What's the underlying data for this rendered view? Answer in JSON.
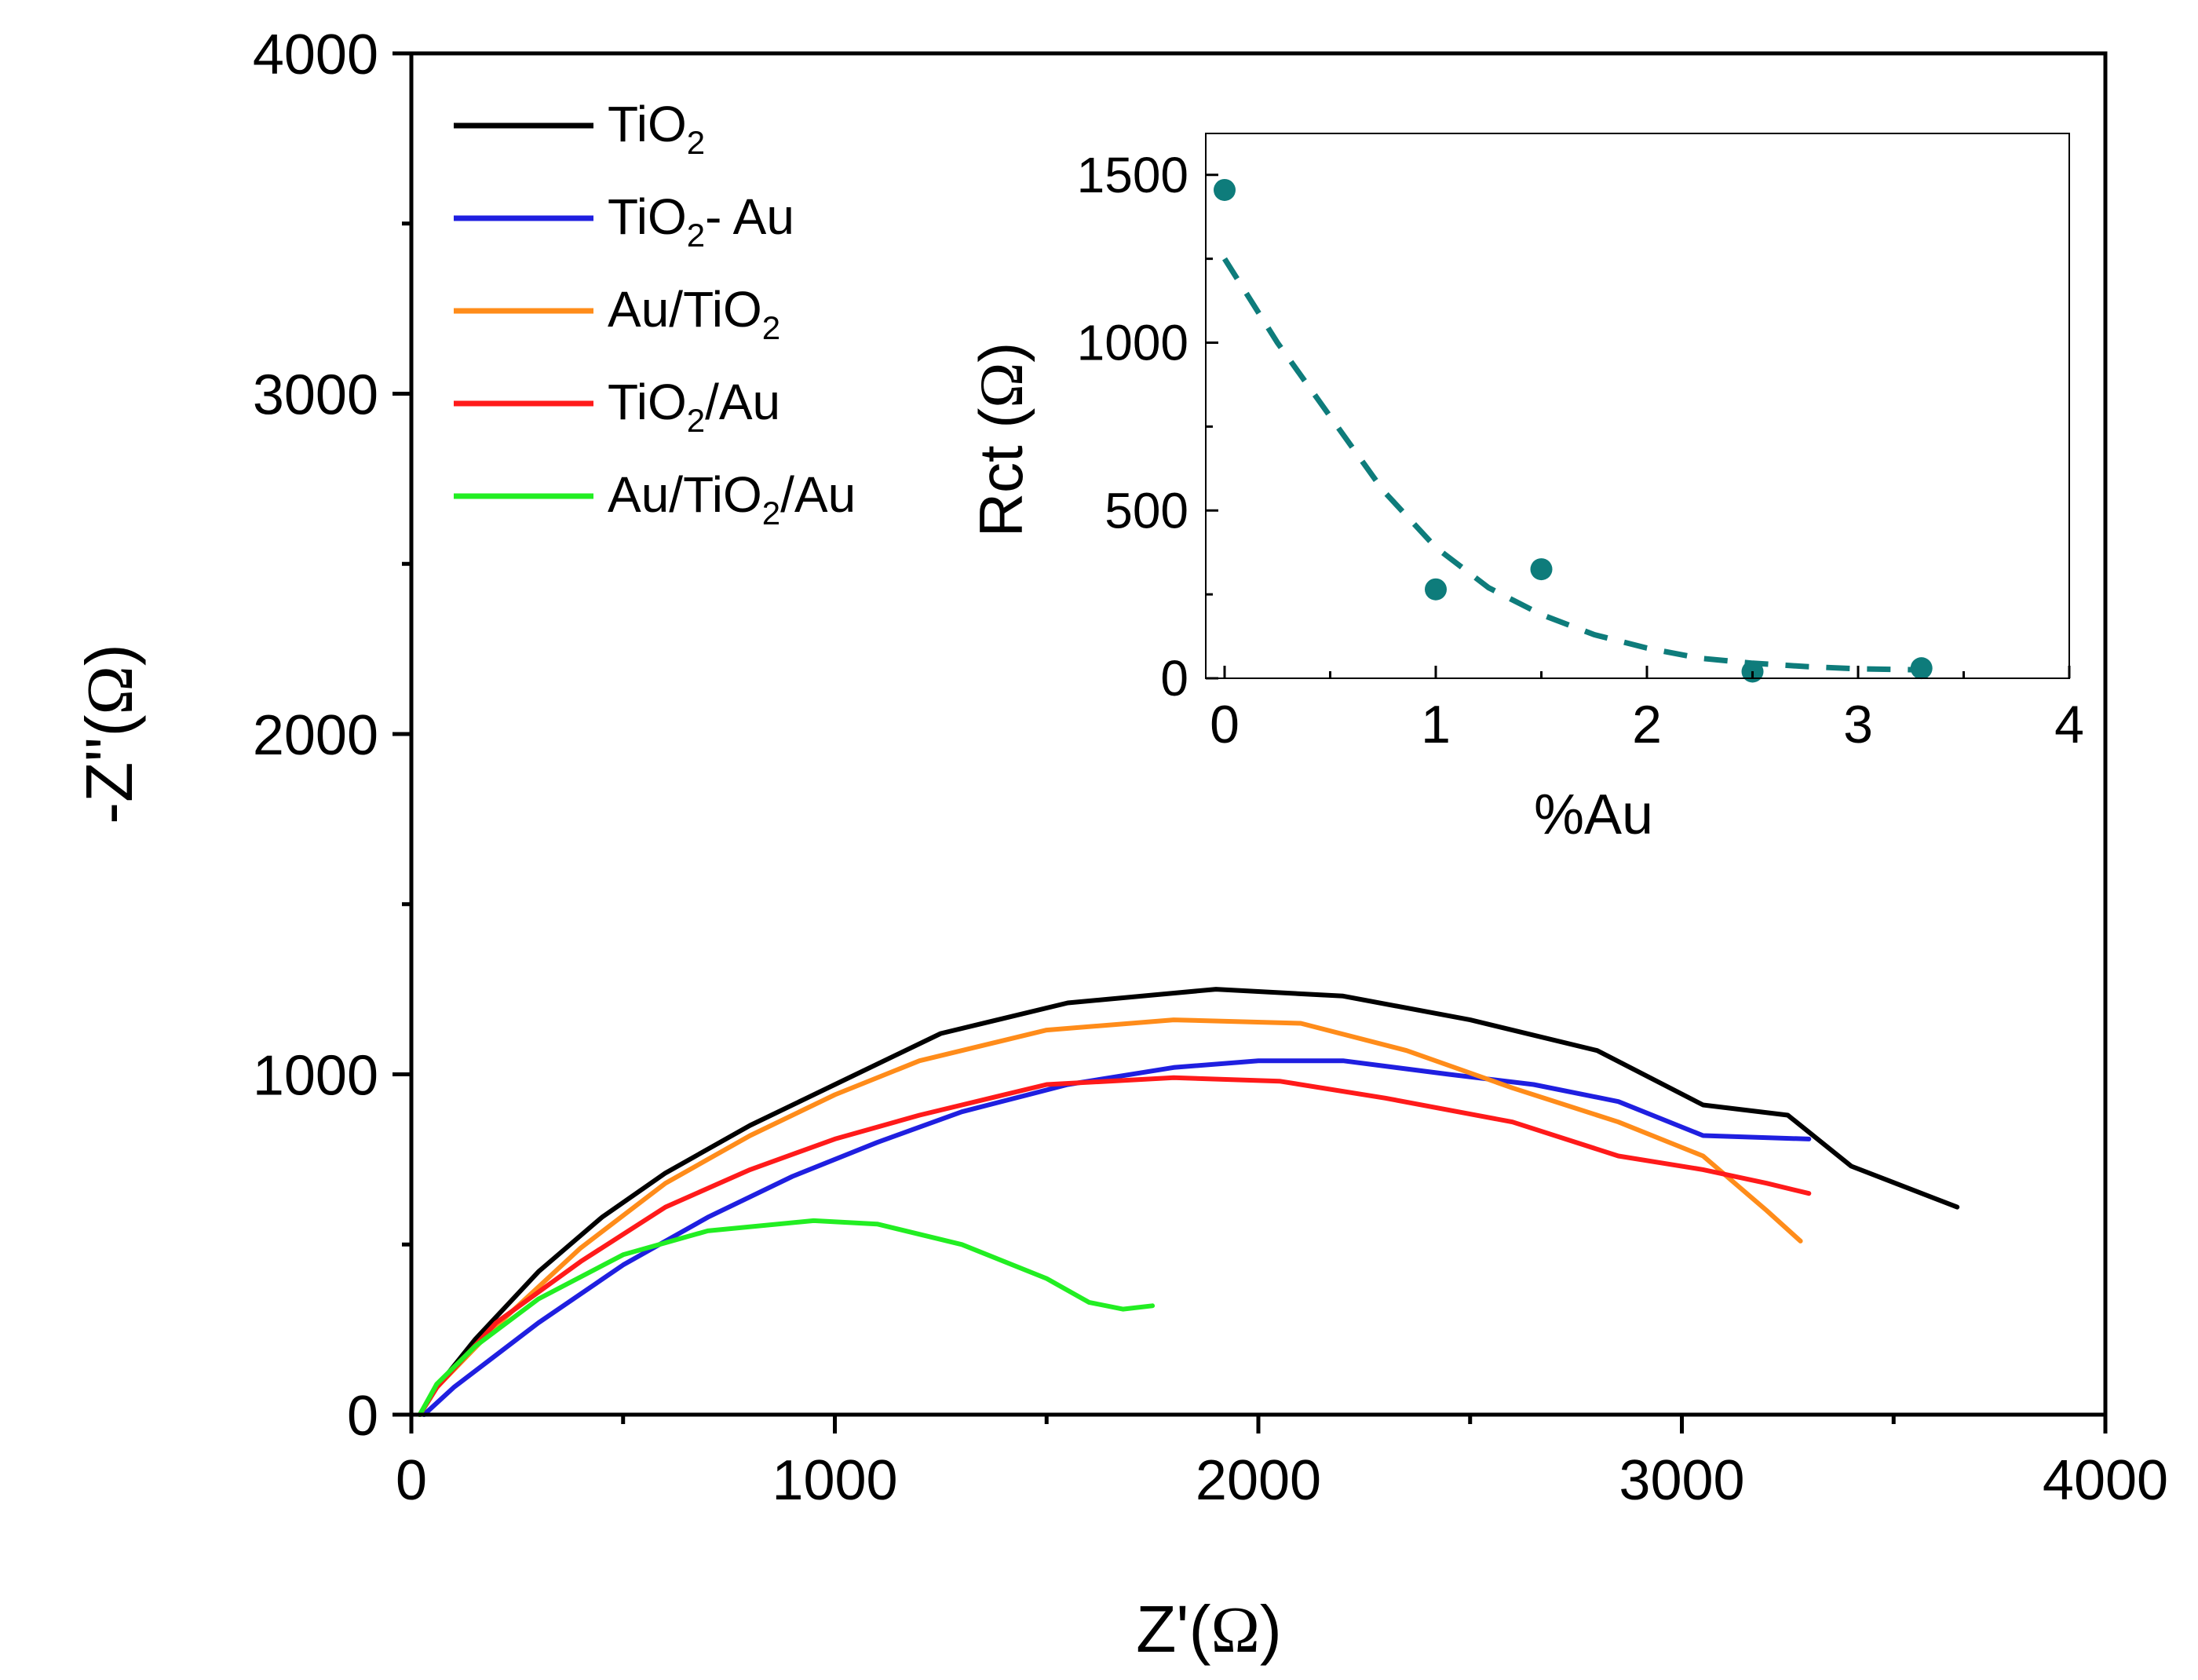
{
  "chart_data": [
    {
      "type": "line",
      "title": "",
      "xlabel_prefix": "Z'(",
      "xlabel_symbol": "Ω",
      "xlabel_suffix": ")",
      "ylabel_prefix": "-Z''(",
      "ylabel_symbol": "Ω",
      "ylabel_suffix": ")",
      "xlim": [
        0,
        4000
      ],
      "ylim": [
        0,
        4000
      ],
      "xticks": [
        0,
        1000,
        2000,
        3000,
        4000
      ],
      "xtick_labels": [
        "0",
        "1000",
        "2000",
        "3000",
        "4000"
      ],
      "yticks": [
        0,
        1000,
        2000,
        3000,
        4000
      ],
      "ytick_labels": [
        "0",
        "1000",
        "2000",
        "3000",
        "4000"
      ],
      "legend_position": "top-left",
      "series": [
        {
          "name": "TiO2",
          "label_main": "TiO",
          "label_sub": "2",
          "label_rest": "",
          "color": "#000000",
          "points": [
            [
              20,
              0
            ],
            [
              60,
              80
            ],
            [
              150,
              220
            ],
            [
              300,
              420
            ],
            [
              450,
              580
            ],
            [
              600,
              710
            ],
            [
              800,
              850
            ],
            [
              1000,
              970
            ],
            [
              1250,
              1120
            ],
            [
              1550,
              1210
            ],
            [
              1900,
              1250
            ],
            [
              2200,
              1230
            ],
            [
              2500,
              1160
            ],
            [
              2800,
              1070
            ],
            [
              3050,
              910
            ],
            [
              3250,
              880
            ],
            [
              3400,
              730
            ],
            [
              3650,
              610
            ]
          ]
        },
        {
          "name": "TiO2- Au",
          "label_main": "TiO",
          "label_sub": "2",
          "label_rest": "- Au",
          "color": "#1f1fe0",
          "points": [
            [
              30,
              0
            ],
            [
              100,
              80
            ],
            [
              300,
              270
            ],
            [
              500,
              440
            ],
            [
              700,
              580
            ],
            [
              900,
              700
            ],
            [
              1100,
              800
            ],
            [
              1300,
              890
            ],
            [
              1550,
              970
            ],
            [
              1800,
              1020
            ],
            [
              2000,
              1040
            ],
            [
              2200,
              1040
            ],
            [
              2450,
              1000
            ],
            [
              2650,
              970
            ],
            [
              2850,
              920
            ],
            [
              3050,
              820
            ],
            [
              3300,
              810
            ]
          ]
        },
        {
          "name": "Au/TiO2",
          "label_main": "Au/TiO",
          "label_sub": "2",
          "label_rest": "",
          "color": "#ff8c1a",
          "points": [
            [
              20,
              0
            ],
            [
              60,
              80
            ],
            [
              200,
              260
            ],
            [
              400,
              490
            ],
            [
              600,
              680
            ],
            [
              800,
              820
            ],
            [
              1000,
              940
            ],
            [
              1200,
              1040
            ],
            [
              1500,
              1130
            ],
            [
              1800,
              1160
            ],
            [
              2100,
              1150
            ],
            [
              2350,
              1070
            ],
            [
              2600,
              960
            ],
            [
              2850,
              860
            ],
            [
              3050,
              760
            ],
            [
              3200,
              600
            ],
            [
              3280,
              510
            ]
          ]
        },
        {
          "name": "TiO2/Au",
          "label_main": "TiO",
          "label_sub": "2",
          "label_rest": "/Au",
          "color": "#ff1a1a",
          "points": [
            [
              20,
              0
            ],
            [
              60,
              80
            ],
            [
              200,
              270
            ],
            [
              400,
              450
            ],
            [
              600,
              610
            ],
            [
              800,
              720
            ],
            [
              1000,
              810
            ],
            [
              1200,
              880
            ],
            [
              1500,
              970
            ],
            [
              1800,
              990
            ],
            [
              2050,
              980
            ],
            [
              2300,
              930
            ],
            [
              2600,
              860
            ],
            [
              2850,
              760
            ],
            [
              3050,
              720
            ],
            [
              3200,
              680
            ],
            [
              3300,
              650
            ]
          ]
        },
        {
          "name": "Au/TiO2/Au",
          "label_main": "Au/TiO",
          "label_sub": "2",
          "label_rest": "/Au",
          "color": "#22ee22",
          "points": [
            [
              20,
              0
            ],
            [
              60,
              90
            ],
            [
              150,
              200
            ],
            [
              300,
              340
            ],
            [
              500,
              470
            ],
            [
              700,
              540
            ],
            [
              950,
              570
            ],
            [
              1100,
              560
            ],
            [
              1300,
              500
            ],
            [
              1500,
              400
            ],
            [
              1600,
              330
            ],
            [
              1680,
              310
            ],
            [
              1750,
              320
            ]
          ]
        }
      ]
    },
    {
      "type": "scatter",
      "title": "",
      "xlabel": "%Au",
      "ylabel_prefix": "Rct (",
      "ylabel_symbol": "Ω",
      "ylabel_suffix": ")",
      "xlim": [
        0,
        4
      ],
      "ylim": [
        0,
        1600
      ],
      "xticks": [
        0,
        1,
        2,
        3,
        4
      ],
      "xtick_labels": [
        "0",
        "1",
        "2",
        "3",
        "4"
      ],
      "yticks": [
        0,
        500,
        1000,
        1500
      ],
      "ytick_labels": [
        "0",
        "500",
        "1000",
        "1500"
      ],
      "marker_color": "#0e7c7b",
      "points": [
        [
          0,
          1455
        ],
        [
          1,
          265
        ],
        [
          1.5,
          325
        ],
        [
          2.5,
          20
        ],
        [
          3.3,
          30
        ]
      ],
      "fit": {
        "style": "dashed",
        "color": "#0e7c7b",
        "points": [
          [
            0,
            1250
          ],
          [
            0.25,
            1000
          ],
          [
            0.5,
            780
          ],
          [
            0.75,
            560
          ],
          [
            1,
            390
          ],
          [
            1.25,
            270
          ],
          [
            1.5,
            190
          ],
          [
            1.75,
            130
          ],
          [
            2,
            90
          ],
          [
            2.25,
            60
          ],
          [
            2.5,
            45
          ],
          [
            2.75,
            35
          ],
          [
            3,
            28
          ],
          [
            3.3,
            25
          ]
        ]
      }
    }
  ]
}
